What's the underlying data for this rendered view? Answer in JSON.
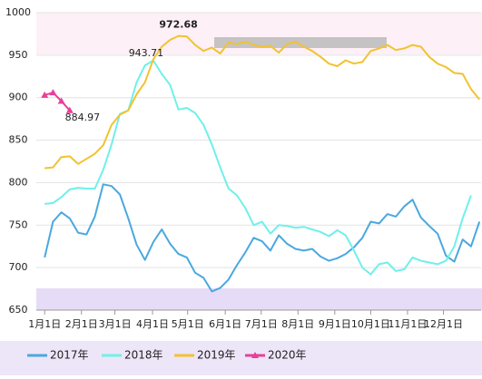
{
  "chart_data": {
    "type": "line",
    "x": [
      0,
      1,
      2,
      3,
      4,
      5,
      6,
      7,
      8,
      9,
      10,
      11,
      12,
      13,
      14,
      15,
      16,
      17,
      18,
      19,
      20,
      21,
      22,
      23,
      24,
      25,
      26,
      27,
      28,
      29,
      30,
      31,
      32,
      33,
      34,
      35,
      36,
      37,
      38,
      39,
      40,
      41,
      42,
      43,
      44,
      45,
      46,
      47,
      48,
      49,
      50,
      51,
      52
    ],
    "xlim": [
      -1,
      52.2
    ],
    "xticks": [
      {
        "value": 0,
        "label": "1月1日"
      },
      {
        "value": 4.4,
        "label": "2月1日"
      },
      {
        "value": 8.4,
        "label": "3月1日"
      },
      {
        "value": 12.9,
        "label": "4月1日"
      },
      {
        "value": 17.1,
        "label": "5月1日"
      },
      {
        "value": 21.6,
        "label": "6月1日"
      },
      {
        "value": 25.9,
        "label": "7月1日"
      },
      {
        "value": 30.3,
        "label": "8月1日"
      },
      {
        "value": 34.7,
        "label": "9月1日"
      },
      {
        "value": 39,
        "label": "10月1日"
      },
      {
        "value": 43.4,
        "label": "11月1日"
      },
      {
        "value": 47.7,
        "label": "12月1日"
      }
    ],
    "ylim": [
      650,
      1000
    ],
    "yticks": [
      650,
      700,
      750,
      800,
      850,
      900,
      950,
      1000
    ],
    "grid": true,
    "legend": "bottom",
    "series": [
      {
        "name": "2017年",
        "color": "#4aa8e0",
        "values": [
          712,
          754,
          765,
          758,
          741,
          739,
          760,
          798,
          796,
          786,
          758,
          727,
          709,
          730,
          745,
          728,
          716,
          712,
          694,
          688,
          672,
          676,
          686,
          703,
          718,
          735,
          731,
          720,
          738,
          728,
          722,
          720,
          722,
          713,
          708,
          711,
          716,
          724,
          735,
          754,
          752,
          763,
          760,
          772,
          780,
          759,
          749,
          740,
          714,
          707,
          733,
          725,
          754
        ]
      },
      {
        "name": "2018年",
        "color": "#6ff0ea",
        "values": [
          775,
          776,
          783,
          792,
          794,
          793,
          793,
          815,
          845,
          881,
          885,
          918,
          938,
          943.71,
          928,
          915,
          886,
          888,
          882,
          868,
          845,
          818,
          793,
          785,
          770,
          750,
          754,
          740,
          750,
          749,
          747,
          748,
          745,
          742,
          737,
          744,
          738,
          720,
          700,
          692,
          704,
          706,
          696,
          698,
          712,
          708,
          706,
          704,
          708,
          725,
          758,
          785,
          null
        ]
      },
      {
        "name": "2019年",
        "color": "#f2c230",
        "values": [
          817,
          818,
          830,
          831,
          822,
          828,
          834,
          844,
          868,
          880,
          885,
          904,
          918,
          945,
          960,
          968,
          972.68,
          972,
          962,
          955,
          959,
          952,
          965,
          963,
          966,
          962,
          960,
          961,
          953,
          963,
          966,
          960,
          955,
          948,
          940,
          937,
          944,
          940,
          942,
          955,
          958,
          962,
          956,
          958,
          962,
          960,
          948,
          940,
          936,
          929,
          928,
          910,
          898
        ]
      },
      {
        "name": "2020年",
        "color": "#e8409a",
        "values": [
          903,
          906,
          896,
          884.97,
          null,
          null,
          null,
          null,
          null,
          null,
          null,
          null,
          null,
          null,
          null,
          null,
          null,
          null,
          null,
          null,
          null,
          null,
          null,
          null,
          null,
          null,
          null,
          null,
          null,
          null,
          null,
          null,
          null,
          null,
          null,
          null,
          null,
          null,
          null,
          null,
          null,
          null,
          null,
          null,
          null,
          null,
          null,
          null,
          null,
          null,
          null,
          null,
          null
        ]
      }
    ]
  }
}
